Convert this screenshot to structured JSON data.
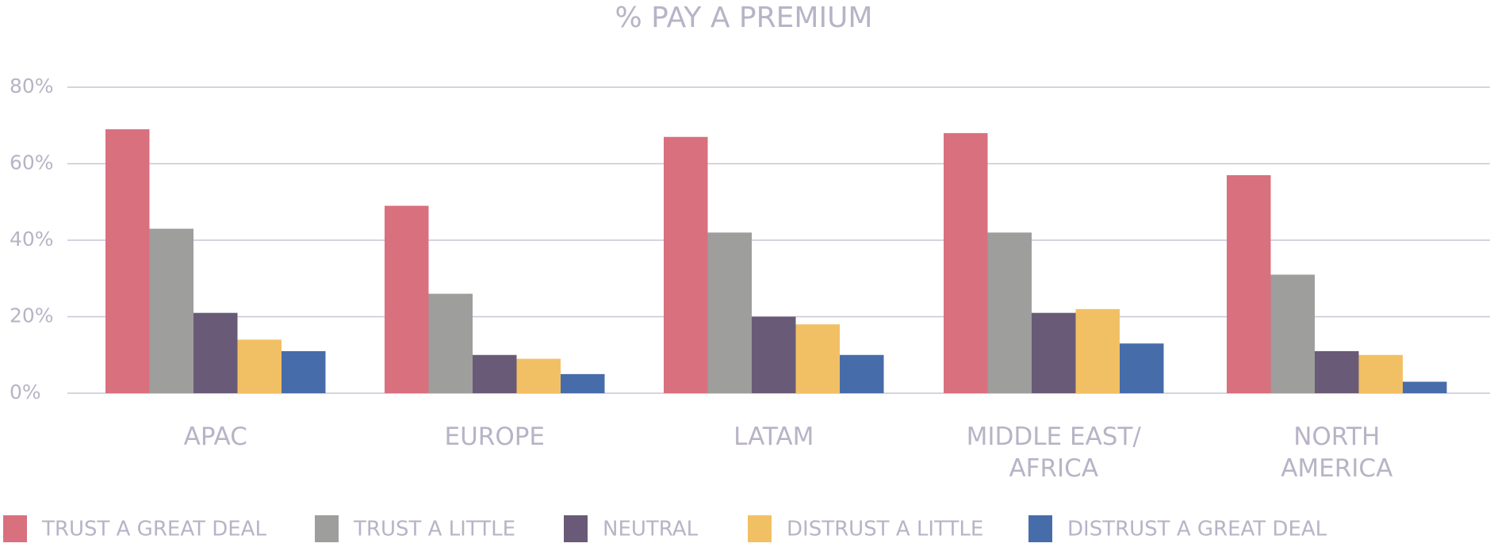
{
  "chart_data": {
    "type": "bar",
    "title": "% PAY A PREMIUM",
    "xlabel": "",
    "ylabel": "",
    "ylim": [
      0,
      80
    ],
    "ytick_values": [
      0,
      20,
      40,
      60,
      80
    ],
    "ytick_labels": [
      "0%",
      "20%",
      "40%",
      "60%",
      "80%"
    ],
    "grid": true,
    "legend_position": "bottom",
    "categories": [
      "APAC",
      "EUROPE",
      "LATAM",
      "MIDDLE EAST/ AFRICA",
      "NORTH AMERICA"
    ],
    "category_label_lines": [
      [
        "APAC"
      ],
      [
        "EUROPE"
      ],
      [
        "LATAM"
      ],
      [
        "MIDDLE EAST/",
        "AFRICA"
      ],
      [
        "NORTH",
        "AMERICA"
      ]
    ],
    "series": [
      {
        "name": "TRUST A GREAT DEAL",
        "color": "#d9707e",
        "values": [
          69,
          49,
          67,
          68,
          57
        ]
      },
      {
        "name": "TRUST A LITTLE",
        "color": "#9e9e9c",
        "values": [
          43,
          26,
          42,
          42,
          31
        ]
      },
      {
        "name": "NEUTRAL",
        "color": "#695b77",
        "values": [
          21,
          10,
          20,
          21,
          11
        ]
      },
      {
        "name": "DISTRUST A LITTLE",
        "color": "#f2c064",
        "values": [
          14,
          9,
          18,
          22,
          10
        ]
      },
      {
        "name": "DISTRUST A GREAT DEAL",
        "color": "#476caa",
        "values": [
          11,
          5,
          10,
          13,
          3
        ]
      }
    ]
  }
}
